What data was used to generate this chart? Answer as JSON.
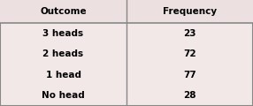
{
  "col_headers": [
    "Outcome",
    "Frequency"
  ],
  "rows": [
    [
      "3 heads",
      "23"
    ],
    [
      "2 heads",
      "72"
    ],
    [
      "1 head",
      "77"
    ],
    [
      "No head",
      "28"
    ]
  ],
  "header_bg": "#ede0e0",
  "row_bg": "#f2e8e8",
  "border_color": "#888888",
  "header_fontsize": 7.5,
  "cell_fontsize": 7.5,
  "fig_bg": "#f2e8e8",
  "fig_width": 2.86,
  "fig_height": 1.2,
  "dpi": 100
}
